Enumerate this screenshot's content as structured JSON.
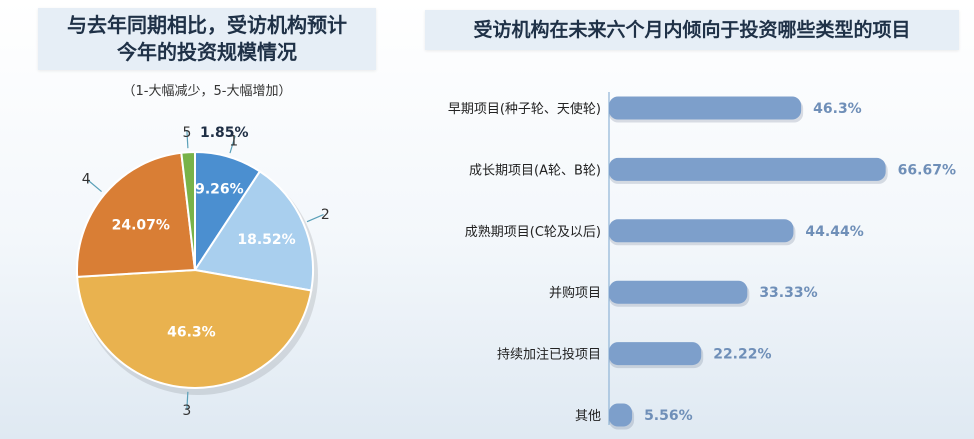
{
  "chart_data": [
    {
      "type": "pie",
      "title": "与去年同期相比，受访机构预计今年的投资规模情况",
      "title_lines": [
        "与去年同期相比，受访机构预计",
        "今年的投资规模情况"
      ],
      "subtitle": "（1-大幅减少，5-大幅增加）",
      "slices": [
        {
          "label": "1",
          "value": 9.26,
          "value_label": "9.26%",
          "color": "#4b8fd0"
        },
        {
          "label": "2",
          "value": 18.52,
          "value_label": "18.52%",
          "color": "#a9cfee"
        },
        {
          "label": "3",
          "value": 46.3,
          "value_label": "46.3%",
          "color": "#e9b24f"
        },
        {
          "label": "4",
          "value": 24.07,
          "value_label": "24.07%",
          "color": "#d97e35"
        },
        {
          "label": "5",
          "value": 1.85,
          "value_label": "1.85%",
          "color": "#78b349"
        }
      ]
    },
    {
      "type": "bar",
      "orientation": "horizontal",
      "title": "受访机构在未来六个月内倾向于投资哪些类型的项目",
      "categories": [
        "早期项目(种子轮、天使轮)",
        "成长期项目(A轮、B轮)",
        "成熟期项目(C轮及以后)",
        "并购项目",
        "持续加注已投项目",
        "其他"
      ],
      "values": [
        46.3,
        66.67,
        44.44,
        33.33,
        22.22,
        5.56
      ],
      "value_labels": [
        "46.3%",
        "66.67%",
        "44.44%",
        "33.33%",
        "22.22%",
        "5.56%"
      ],
      "bar_color": "#7d9fcb",
      "xlim": [
        0,
        100
      ],
      "grid": false
    }
  ]
}
